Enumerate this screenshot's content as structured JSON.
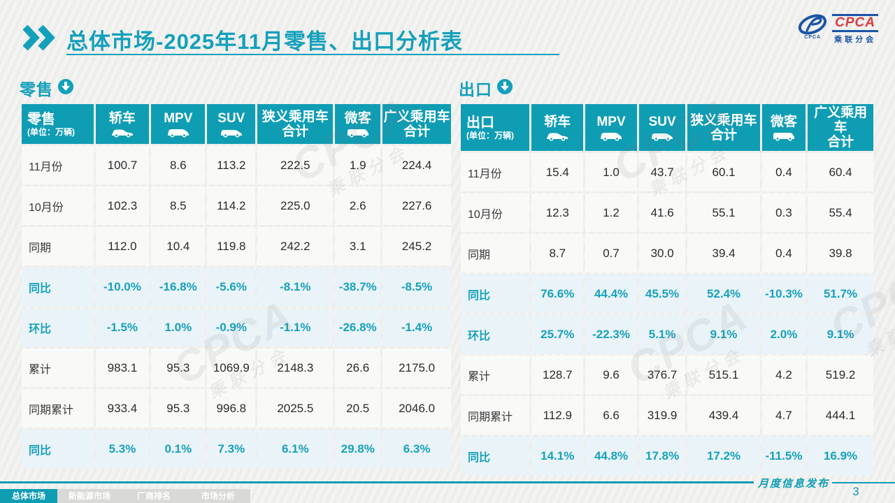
{
  "header": {
    "title_bold": "总体市场",
    "title_rest": "-2025年11月零售、出口分析表"
  },
  "logo": {
    "small_text": "CPCA",
    "cpca": "CPCA",
    "sub": "乘联分会"
  },
  "watermark": {
    "text": "CPCA",
    "subtext": "乘联分会"
  },
  "columns": [
    {
      "label": "轿车",
      "icon": "sedan-icon"
    },
    {
      "label": "MPV",
      "icon": "mpv-icon"
    },
    {
      "label": "SUV",
      "icon": "suv-icon"
    },
    {
      "label": "狭义乘用车",
      "label2": "合计",
      "icon": null
    },
    {
      "label": "微客",
      "icon": "microvan-icon"
    },
    {
      "label": "广义乘用车",
      "label2": "合计",
      "icon": null
    }
  ],
  "tables": [
    {
      "section_label": "零售",
      "unit": "(单位：万辆)",
      "rows": [
        {
          "label": "11月份",
          "highlight": false,
          "values": [
            "100.7",
            "8.6",
            "113.2",
            "222.5",
            "1.9",
            "224.4"
          ]
        },
        {
          "label": "10月份",
          "highlight": false,
          "values": [
            "102.3",
            "8.5",
            "114.2",
            "225.0",
            "2.6",
            "227.6"
          ]
        },
        {
          "label": "同期",
          "highlight": false,
          "values": [
            "112.0",
            "10.4",
            "119.8",
            "242.2",
            "3.1",
            "245.2"
          ]
        },
        {
          "label": "同比",
          "highlight": true,
          "values": [
            "-10.0%",
            "-16.8%",
            "-5.6%",
            "-8.1%",
            "-38.7%",
            "-8.5%"
          ]
        },
        {
          "label": "环比",
          "highlight": true,
          "values": [
            "-1.5%",
            "1.0%",
            "-0.9%",
            "-1.1%",
            "-26.8%",
            "-1.4%"
          ]
        },
        {
          "label": "累计",
          "highlight": false,
          "values": [
            "983.1",
            "95.3",
            "1069.9",
            "2148.3",
            "26.6",
            "2175.0"
          ]
        },
        {
          "label": "同期累计",
          "highlight": false,
          "values": [
            "933.4",
            "95.3",
            "996.8",
            "2025.5",
            "20.5",
            "2046.0"
          ]
        },
        {
          "label": "同比",
          "highlight": true,
          "values": [
            "5.3%",
            "0.1%",
            "7.3%",
            "6.1%",
            "29.8%",
            "6.3%"
          ]
        }
      ]
    },
    {
      "section_label": "出口",
      "unit": "(单位：万辆)",
      "rows": [
        {
          "label": "11月份",
          "highlight": false,
          "values": [
            "15.4",
            "1.0",
            "43.7",
            "60.1",
            "0.4",
            "60.4"
          ]
        },
        {
          "label": "10月份",
          "highlight": false,
          "values": [
            "12.3",
            "1.2",
            "41.6",
            "55.1",
            "0.3",
            "55.4"
          ]
        },
        {
          "label": "同期",
          "highlight": false,
          "values": [
            "8.7",
            "0.7",
            "30.0",
            "39.4",
            "0.4",
            "39.8"
          ]
        },
        {
          "label": "同比",
          "highlight": true,
          "values": [
            "76.6%",
            "44.4%",
            "45.5%",
            "52.4%",
            "-10.3%",
            "51.7%"
          ]
        },
        {
          "label": "环比",
          "highlight": true,
          "values": [
            "25.7%",
            "-22.3%",
            "5.1%",
            "9.1%",
            "2.0%",
            "9.1%"
          ]
        },
        {
          "label": "累计",
          "highlight": false,
          "values": [
            "128.7",
            "9.6",
            "376.7",
            "515.1",
            "4.2",
            "519.2"
          ]
        },
        {
          "label": "同期累计",
          "highlight": false,
          "values": [
            "112.9",
            "6.6",
            "319.9",
            "439.4",
            "4.7",
            "444.1"
          ]
        },
        {
          "label": "同比",
          "highlight": true,
          "values": [
            "14.1%",
            "44.8%",
            "17.8%",
            "17.2%",
            "-11.5%",
            "16.9%"
          ]
        }
      ]
    }
  ],
  "footer": {
    "tabs": [
      {
        "label": "总体市场",
        "active": true
      },
      {
        "label": "新能源市场",
        "active": false
      },
      {
        "label": "厂商排名",
        "active": false
      },
      {
        "label": "市场分析",
        "active": false
      }
    ],
    "publish_label": "月度信息发布",
    "page_number": "3"
  },
  "colors": {
    "accent": "#0f9db4",
    "accent_text": "#18a1bb",
    "highlight_row_bg": "#e9f3f8",
    "logo_red": "#d93b3e",
    "logo_blue": "#1b55a5",
    "inactive_tab_bg": "#d9d9d8"
  },
  "chart_data": [
    {
      "type": "table",
      "title": "零售 (单位：万辆)",
      "columns": [
        "轿车",
        "MPV",
        "SUV",
        "狭义乘用车合计",
        "微客",
        "广义乘用车合计"
      ],
      "rows": {
        "11月份": [
          100.7,
          8.6,
          113.2,
          222.5,
          1.9,
          224.4
        ],
        "10月份": [
          102.3,
          8.5,
          114.2,
          225.0,
          2.6,
          227.6
        ],
        "同期": [
          112.0,
          10.4,
          119.8,
          242.2,
          3.1,
          245.2
        ],
        "同比": [
          "-10.0%",
          "-16.8%",
          "-5.6%",
          "-8.1%",
          "-38.7%",
          "-8.5%"
        ],
        "环比": [
          "-1.5%",
          "1.0%",
          "-0.9%",
          "-1.1%",
          "-26.8%",
          "-1.4%"
        ],
        "累计": [
          983.1,
          95.3,
          1069.9,
          2148.3,
          26.6,
          2175.0
        ],
        "同期累计": [
          933.4,
          95.3,
          996.8,
          2025.5,
          20.5,
          2046.0
        ],
        "累计同比": [
          "5.3%",
          "0.1%",
          "7.3%",
          "6.1%",
          "29.8%",
          "6.3%"
        ]
      }
    },
    {
      "type": "table",
      "title": "出口 (单位：万辆)",
      "columns": [
        "轿车",
        "MPV",
        "SUV",
        "狭义乘用车合计",
        "微客",
        "广义乘用车合计"
      ],
      "rows": {
        "11月份": [
          15.4,
          1.0,
          43.7,
          60.1,
          0.4,
          60.4
        ],
        "10月份": [
          12.3,
          1.2,
          41.6,
          55.1,
          0.3,
          55.4
        ],
        "同期": [
          8.7,
          0.7,
          30.0,
          39.4,
          0.4,
          39.8
        ],
        "同比": [
          "76.6%",
          "44.4%",
          "45.5%",
          "52.4%",
          "-10.3%",
          "51.7%"
        ],
        "环比": [
          "25.7%",
          "-22.3%",
          "5.1%",
          "9.1%",
          "2.0%",
          "9.1%"
        ],
        "累计": [
          128.7,
          9.6,
          376.7,
          515.1,
          4.2,
          519.2
        ],
        "同期累计": [
          112.9,
          6.6,
          319.9,
          439.4,
          4.7,
          444.1
        ],
        "累计同比": [
          "14.1%",
          "44.8%",
          "17.8%",
          "17.2%",
          "-11.5%",
          "16.9%"
        ]
      }
    }
  ]
}
